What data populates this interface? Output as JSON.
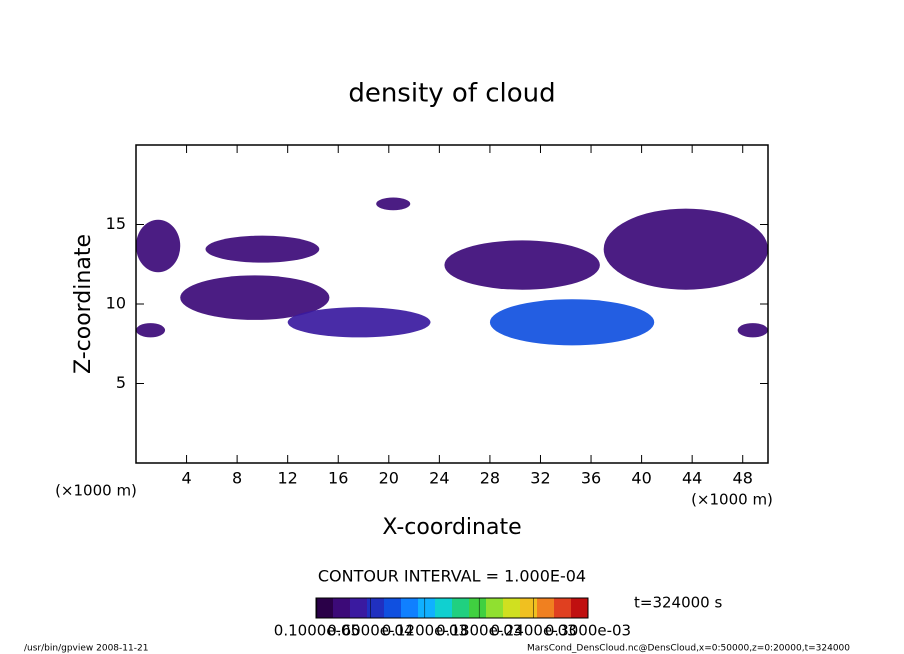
{
  "chart_data": {
    "type": "contour",
    "title": "density of cloud",
    "xlabel": "X-coordinate",
    "ylabel": "Z-coordinate",
    "x_unit": "(×1000 m)",
    "y_unit": "(×1000 m)",
    "contour_interval": "CONTOUR INTERVAL = 1.000E-04",
    "time_label": "t=324000 s",
    "footer_left": "/usr/bin/gpview   2008-11-21",
    "footer_right": "MarsCond_DensCloud.nc@DensCloud,x=0:50000,z=0:20000,t=324000",
    "xlim": [
      0,
      50
    ],
    "ylim": [
      0,
      20
    ],
    "xticks": [
      4,
      8,
      12,
      16,
      20,
      24,
      28,
      32,
      36,
      40,
      44,
      48
    ],
    "yticks": [
      5,
      10,
      15
    ],
    "colorbar_lim": [
      0,
      0.0003
    ],
    "colorbar_colors": [
      "#2a0048",
      "#3c0a78",
      "#3a1aa0",
      "#2030c0",
      "#1050e0",
      "#1080ff",
      "#10b0ff",
      "#10d0d0",
      "#20d080",
      "#40d040",
      "#90e030",
      "#d0e020",
      "#f0c020",
      "#f08020",
      "#e04020",
      "#c01010"
    ],
    "colorbar_ticks": [
      {
        "value": 1e-06,
        "label": "0.1000e-05"
      },
      {
        "value": 6e-05,
        "label": "0.6000e-04"
      },
      {
        "value": 0.00012,
        "label": "0.1200e-03"
      },
      {
        "value": 0.00018,
        "label": "0.1800e-03"
      },
      {
        "value": 0.00024,
        "label": "0.2400e-03"
      },
      {
        "value": 0.0003,
        "label": "0.3000e-03"
      }
    ],
    "regions": [
      {
        "x": [
          0,
          3.5
        ],
        "z": [
          12,
          15.3
        ],
        "value": 2e-05
      },
      {
        "x": [
          5.5,
          14.5
        ],
        "z": [
          12.6,
          14.3
        ],
        "value": 2e-05
      },
      {
        "x": [
          3.5,
          15.3
        ],
        "z": [
          9,
          11.8
        ],
        "value": 3e-05
      },
      {
        "x": [
          12,
          23.3
        ],
        "z": [
          7.9,
          9.8
        ],
        "value": 4e-05
      },
      {
        "x": [
          19,
          21.7
        ],
        "z": [
          15.9,
          16.7
        ],
        "value": 2e-05
      },
      {
        "x": [
          24.4,
          36.7
        ],
        "z": [
          10.9,
          14
        ],
        "value": 2e-05
      },
      {
        "x": [
          28,
          41
        ],
        "z": [
          7.4,
          10.3
        ],
        "value": 8e-05
      },
      {
        "x": [
          37,
          50
        ],
        "z": [
          10.9,
          16
        ],
        "value": 2e-05
      },
      {
        "x": [
          0,
          2.3
        ],
        "z": [
          7.9,
          8.8
        ],
        "value": 2e-05
      },
      {
        "x": [
          47.6,
          50
        ],
        "z": [
          7.9,
          8.8
        ],
        "value": 2e-05
      }
    ]
  }
}
